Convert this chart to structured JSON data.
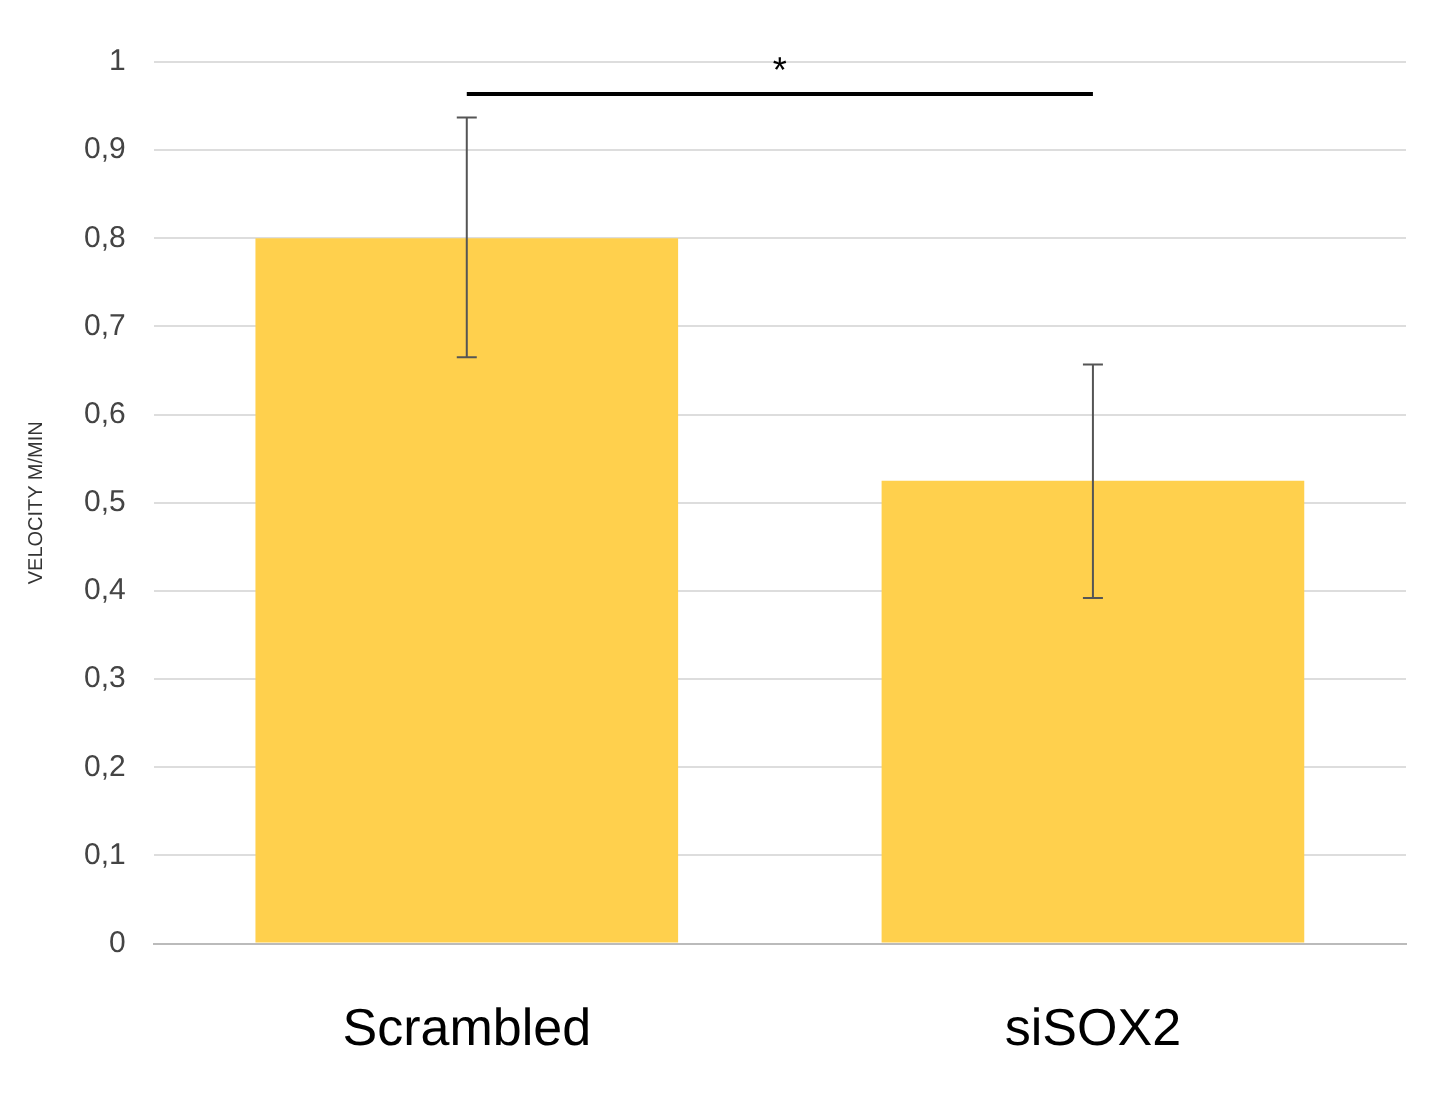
{
  "chart_data": {
    "type": "bar",
    "ylabel": "VELOCITY M/MIN",
    "categories": [
      "Scrambled",
      "siSOX2"
    ],
    "values": [
      0.8,
      0.525
    ],
    "color": "#ffd04d",
    "errors": [
      [
        0.665,
        0.937
      ],
      [
        0.392,
        0.657
      ]
    ],
    "ylim": [
      0,
      1
    ],
    "yticks": [
      {
        "value": 0,
        "label": "0"
      },
      {
        "value": 0.1,
        "label": "0,1"
      },
      {
        "value": 0.2,
        "label": "0,2"
      },
      {
        "value": 0.3,
        "label": "0,3"
      },
      {
        "value": 0.4,
        "label": "0,4"
      },
      {
        "value": 0.5,
        "label": "0,5"
      },
      {
        "value": 0.6,
        "label": "0,6"
      },
      {
        "value": 0.7,
        "label": "0,7"
      },
      {
        "value": 0.8,
        "label": "0,8"
      },
      {
        "value": 0.9,
        "label": "0,9"
      },
      {
        "value": 1,
        "label": "1"
      }
    ],
    "grid": "y",
    "legend": false,
    "annotations": [
      "*"
    ]
  }
}
